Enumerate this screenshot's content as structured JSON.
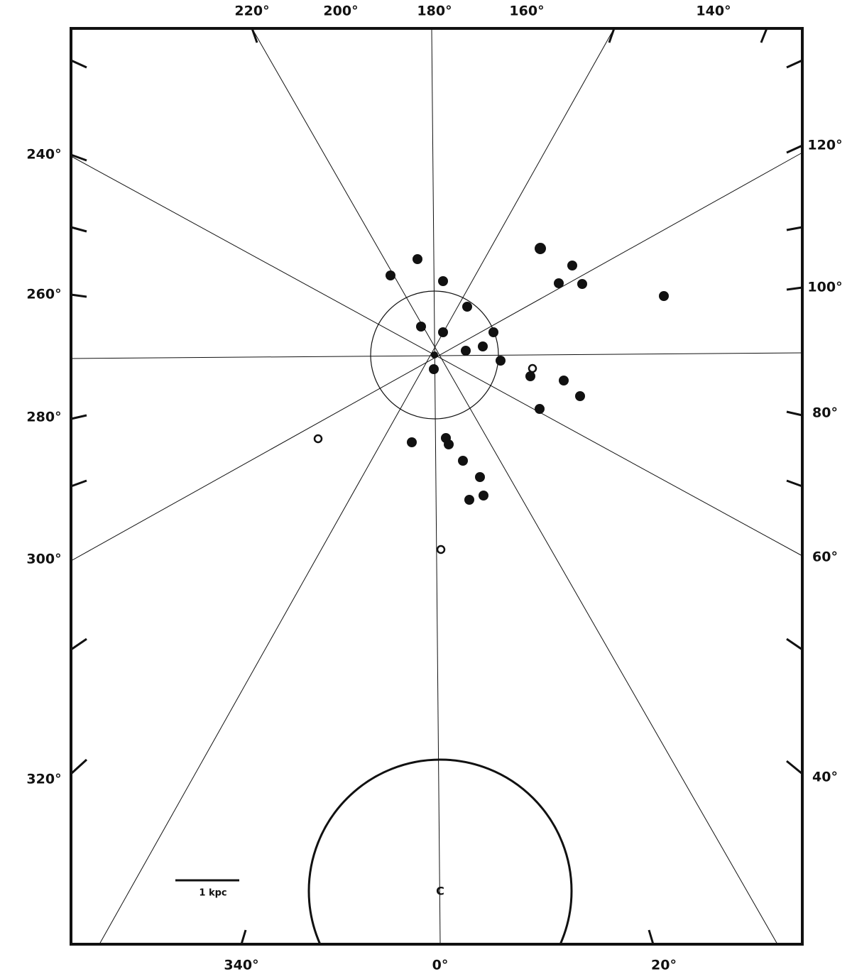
{
  "top_labels": [
    "220°",
    "200°",
    "180°",
    "160°",
    "140°"
  ],
  "left_labels": [
    "240°",
    "260°",
    "280°",
    "300°",
    "320°"
  ],
  "right_labels": [
    "120°",
    "100°",
    "80°",
    "60°",
    "40°"
  ],
  "bottom_labels": [
    "340°",
    "0°",
    "20°"
  ],
  "scale_bar": "1 kpc",
  "center_label": "C"
}
